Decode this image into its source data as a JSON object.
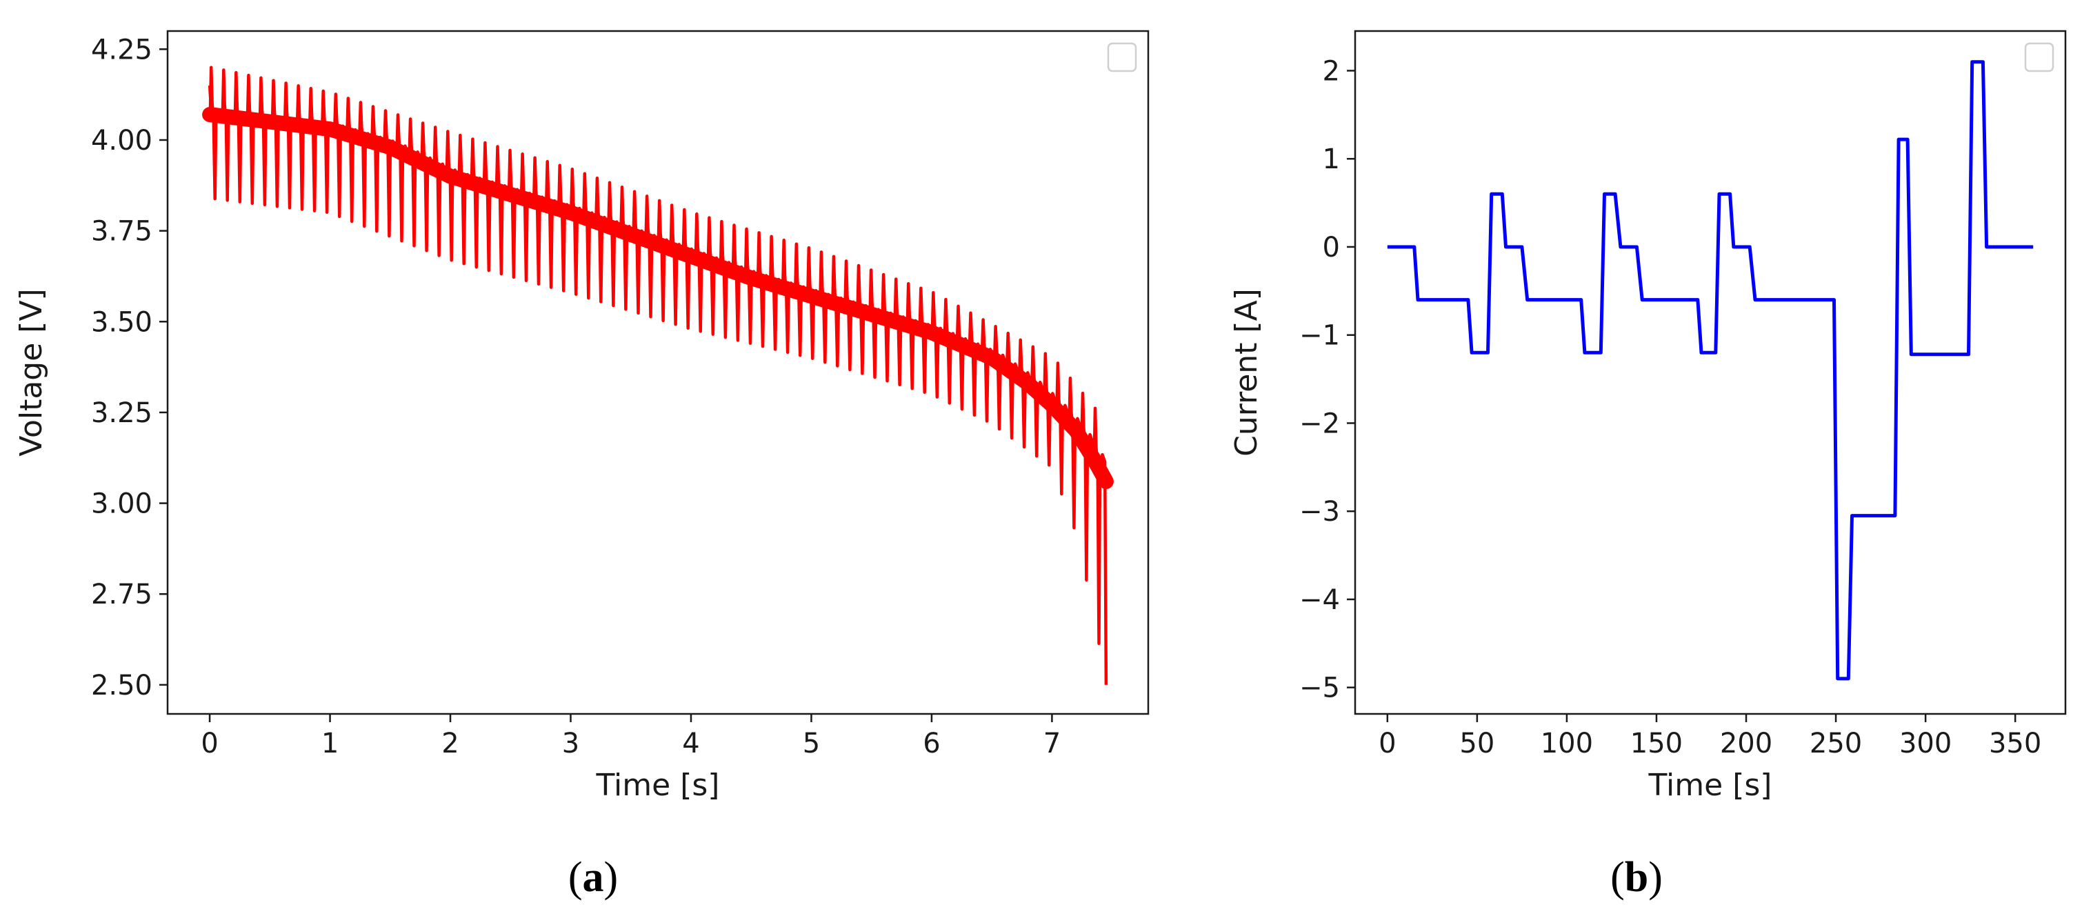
{
  "chart_data": [
    {
      "type": "line",
      "panel_label": "a",
      "xlabel": "Time [s]",
      "ylabel": "Voltage [V]",
      "xlim": [
        -0.35,
        7.8
      ],
      "ylim": [
        2.42,
        4.3
      ],
      "xticks": [
        0,
        1,
        2,
        3,
        4,
        5,
        6,
        7
      ],
      "xtick_labels": [
        "0",
        "1",
        "2",
        "3",
        "4",
        "5",
        "6",
        "7"
      ],
      "yticks": [
        2.5,
        2.75,
        3.0,
        3.25,
        3.5,
        3.75,
        4.0,
        4.25
      ],
      "ytick_labels": [
        "2.50",
        "2.75",
        "3.00",
        "3.25",
        "3.50",
        "3.75",
        "4.00",
        "4.25"
      ],
      "legend": "top-right (empty)",
      "color": "#ff0000",
      "series": [
        {
          "name": "Voltage",
          "description": "pulsed discharge: baseline voltage with upward spikes and downward dips at each pulse",
          "baseline": {
            "x": [
              0,
              0.5,
              1.0,
              1.5,
              2.0,
              2.5,
              3.0,
              3.5,
              4.0,
              4.5,
              5.0,
              5.5,
              6.0,
              6.5,
              6.8,
              7.0,
              7.2,
              7.35,
              7.45
            ],
            "y": [
              4.07,
              4.05,
              4.03,
              3.98,
              3.9,
              3.85,
              3.8,
              3.74,
              3.68,
              3.62,
              3.57,
              3.52,
              3.47,
              3.4,
              3.33,
              3.27,
              3.2,
              3.12,
              3.06
            ]
          },
          "upper_envelope": {
            "x": [
              0,
              1.0,
              2.0,
              3.0,
              4.0,
              5.0,
              6.0,
              7.0,
              7.45
            ],
            "y": [
              4.2,
              4.13,
              4.02,
              3.92,
              3.8,
              3.7,
              3.58,
              3.4,
              3.22
            ]
          },
          "lower_envelope": {
            "x": [
              0,
              1.0,
              2.0,
              3.0,
              4.0,
              5.0,
              6.0,
              6.5,
              7.0,
              7.2,
              7.35,
              7.45
            ],
            "y": [
              3.84,
              3.8,
              3.67,
              3.58,
              3.48,
              3.4,
              3.3,
              3.22,
              3.1,
              2.92,
              2.7,
              2.5
            ]
          },
          "pulse_count": 72
        }
      ]
    },
    {
      "type": "line",
      "panel_label": "b",
      "xlabel": "Time [s]",
      "ylabel": "Current [A]",
      "xlim": [
        -18,
        378
      ],
      "ylim": [
        -5.3,
        2.45
      ],
      "xticks": [
        0,
        50,
        100,
        150,
        200,
        250,
        300,
        350
      ],
      "xtick_labels": [
        "0",
        "50",
        "100",
        "150",
        "200",
        "250",
        "300",
        "350"
      ],
      "yticks": [
        -5,
        -4,
        -3,
        -2,
        -1,
        0,
        1,
        2
      ],
      "ytick_labels": [
        "−5",
        "−4",
        "−3",
        "−2",
        "−1",
        "0",
        "1",
        "2"
      ],
      "legend": "top-right (empty)",
      "color": "#0000ff",
      "series": [
        {
          "name": "Current",
          "x": [
            0,
            15,
            17,
            45,
            47,
            56,
            58,
            64,
            66,
            75,
            78,
            87,
            90,
            108,
            110,
            119,
            121,
            127,
            130,
            139,
            142,
            151,
            154,
            173,
            175,
            183,
            185,
            191,
            193,
            202,
            205,
            213,
            216,
            249,
            251,
            257,
            259,
            283,
            285,
            290,
            292,
            324,
            326,
            332,
            334,
            360
          ],
          "y": [
            0,
            0,
            -0.6,
            -0.6,
            -1.2,
            -1.2,
            0.6,
            0.6,
            0,
            0,
            -0.6,
            -0.6,
            -0.6,
            -0.6,
            -1.2,
            -1.2,
            0.6,
            0.6,
            0,
            0,
            -0.6,
            -0.6,
            -0.6,
            -0.6,
            -1.2,
            -1.2,
            0.6,
            0.6,
            0,
            0,
            -0.6,
            -0.6,
            -0.6,
            -0.6,
            -4.9,
            -4.9,
            -3.05,
            -3.05,
            1.22,
            1.22,
            -1.22,
            -1.22,
            2.1,
            2.1,
            0,
            0
          ]
        }
      ]
    }
  ]
}
